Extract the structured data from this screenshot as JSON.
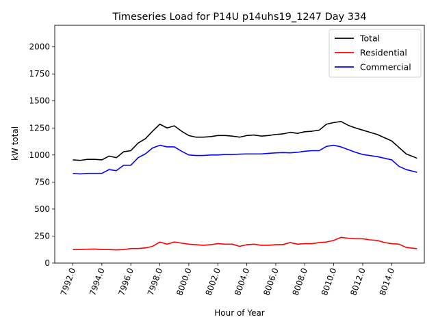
{
  "chart_data": {
    "type": "line",
    "title": "Timeseries Load for P14U p14uhs19_1247  Day 334",
    "xlabel": "Hour of Year",
    "ylabel": "kW total",
    "xlim": [
      7990.75,
      8016.25
    ],
    "ylim": [
      0,
      2200
    ],
    "xticks": [
      7992,
      7994,
      7996,
      7998,
      8000,
      8002,
      8004,
      8006,
      8008,
      8010,
      8012,
      8014
    ],
    "xtick_labels": [
      "7992.0",
      "7994.0",
      "7996.0",
      "7998.0",
      "8000.0",
      "8002.0",
      "8004.0",
      "8006.0",
      "8008.0",
      "8010.0",
      "8012.0",
      "8014.0"
    ],
    "yticks": [
      0,
      250,
      500,
      750,
      1000,
      1250,
      1500,
      1750,
      2000
    ],
    "ytick_labels": [
      "0",
      "250",
      "500",
      "750",
      "1000",
      "1250",
      "1500",
      "1750",
      "2000"
    ],
    "grid": false,
    "legend_position": "top-right",
    "x": [
      7992.0,
      7992.5,
      7993.0,
      7993.5,
      7994.0,
      7994.5,
      7995.0,
      7995.5,
      7996.0,
      7996.5,
      7997.0,
      7997.5,
      7998.0,
      7998.5,
      7999.0,
      7999.5,
      8000.0,
      8000.5,
      8001.0,
      8001.5,
      8002.0,
      8002.5,
      8003.0,
      8003.5,
      8004.0,
      8004.5,
      8005.0,
      8005.5,
      8006.0,
      8006.5,
      8007.0,
      8007.5,
      8008.0,
      8008.5,
      8009.0,
      8009.5,
      8010.0,
      8010.5,
      8011.0,
      8011.5,
      8012.0,
      8012.5,
      8013.0,
      8013.5,
      8014.0,
      8014.5,
      8015.0,
      8015.75
    ],
    "series": [
      {
        "name": "Total",
        "color": "#000000",
        "values": [
          955,
          950,
          960,
          960,
          955,
          990,
          975,
          1030,
          1040,
          1110,
          1150,
          1220,
          1285,
          1250,
          1270,
          1220,
          1180,
          1165,
          1165,
          1170,
          1180,
          1180,
          1175,
          1165,
          1180,
          1185,
          1175,
          1180,
          1190,
          1195,
          1210,
          1200,
          1215,
          1220,
          1230,
          1285,
          1300,
          1310,
          1275,
          1250,
          1230,
          1210,
          1190,
          1160,
          1130,
          1070,
          1010,
          970
        ]
      },
      {
        "name": "Residential",
        "color": "#ff0000",
        "values": [
          125,
          125,
          128,
          130,
          125,
          125,
          122,
          125,
          135,
          135,
          140,
          155,
          195,
          175,
          195,
          185,
          175,
          170,
          165,
          170,
          180,
          175,
          175,
          155,
          170,
          175,
          165,
          165,
          170,
          172,
          190,
          175,
          180,
          180,
          190,
          195,
          210,
          238,
          230,
          225,
          225,
          215,
          210,
          190,
          180,
          175,
          145,
          133
        ]
      },
      {
        "name": "Commercial",
        "color": "#0000ff",
        "values": [
          830,
          825,
          830,
          830,
          830,
          865,
          855,
          905,
          905,
          975,
          1010,
          1065,
          1090,
          1075,
          1075,
          1035,
          1000,
          995,
          995,
          1000,
          1000,
          1005,
          1005,
          1008,
          1010,
          1010,
          1010,
          1015,
          1020,
          1022,
          1020,
          1025,
          1035,
          1040,
          1040,
          1080,
          1090,
          1075,
          1050,
          1025,
          1005,
          995,
          985,
          970,
          955,
          895,
          865,
          840
        ]
      }
    ]
  }
}
